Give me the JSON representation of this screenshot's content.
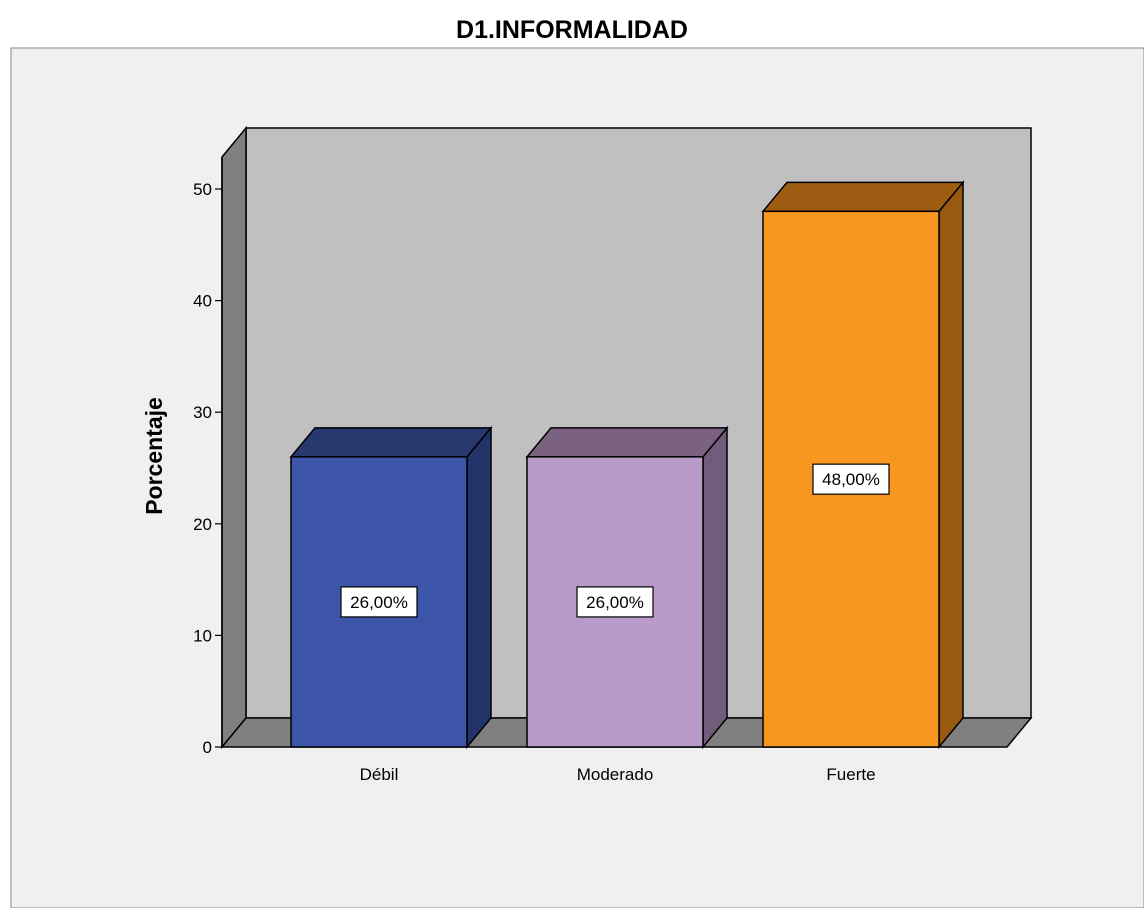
{
  "chart_data": {
    "type": "bar",
    "title": "D1.INFORMALIDAD",
    "xlabel": "",
    "ylabel": "Porcentaje",
    "categories": [
      "Débil",
      "Moderado",
      "Fuerte"
    ],
    "values": [
      26,
      26,
      48
    ],
    "data_labels": [
      "26,00%",
      "26,00%",
      "48,00%"
    ],
    "y_ticks": [
      0,
      10,
      20,
      30,
      40,
      50
    ],
    "ylim": [
      0,
      50
    ],
    "style": "3d-bar",
    "grid": false,
    "legend": "none",
    "colors": {
      "bars": [
        "#3c55a8",
        "#b99bca",
        "#f7971f"
      ],
      "bars_side": [
        "#23346b",
        "#725c7c",
        "#985a10"
      ],
      "bars_top": [
        "#26386e",
        "#7a6280",
        "#9d5c12"
      ],
      "back_wall": "#c0c0c0",
      "side_wall": "#808080",
      "floor": "#808080",
      "outer_background": "#f0f0f0"
    }
  }
}
